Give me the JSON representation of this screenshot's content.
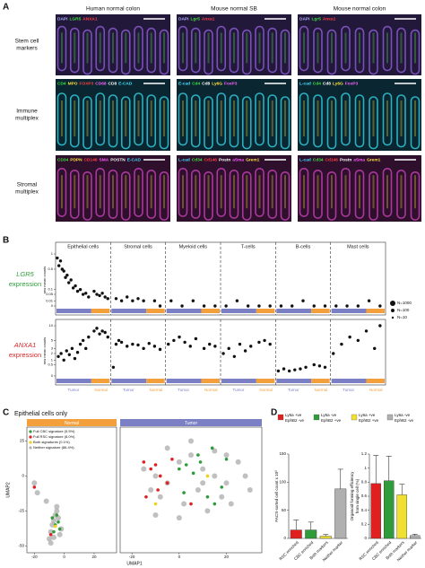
{
  "panel_a": {
    "letter": "A",
    "columns": [
      "Human normal colon",
      "Mouse normal SB",
      "Mouse normal colon"
    ],
    "rows": [
      {
        "label": [
          "Stem cell",
          "markers"
        ],
        "images": [
          {
            "stains": [
              {
                "text": "DAPI",
                "color": "#b0b0ff"
              },
              {
                "text": "LGR5",
                "color": "#40e040"
              },
              {
                "text": "ANXA1",
                "color": "#ff4040"
              }
            ]
          },
          {
            "stains": [
              {
                "text": "DAPI",
                "color": "#b0b0ff"
              },
              {
                "text": "Lgr5",
                "color": "#40e040"
              },
              {
                "text": "Anxa1",
                "color": "#ff4040"
              }
            ]
          },
          {
            "stains": [
              {
                "text": "DAPI",
                "color": "#b0b0ff"
              },
              {
                "text": "Lgr5",
                "color": "#40e040"
              },
              {
                "text": "Anxa1",
                "color": "#ff4040"
              }
            ]
          }
        ]
      },
      {
        "label": [
          "Immune",
          "multiplex"
        ],
        "images": [
          {
            "stains": [
              {
                "text": "CD4",
                "color": "#40e040"
              },
              {
                "text": "MPO",
                "color": "#ffe040"
              },
              {
                "text": "FOXP3",
                "color": "#ff4040"
              },
              {
                "text": "CD68",
                "color": "#ff60ff"
              },
              {
                "text": "CD8",
                "color": "#ffffff"
              },
              {
                "text": "E-CAD",
                "color": "#40e0ff"
              }
            ]
          },
          {
            "stains": [
              {
                "text": "E-cad",
                "color": "#40e0ff"
              },
              {
                "text": "Cd4",
                "color": "#40e040"
              },
              {
                "text": "Cd8",
                "color": "#ffffff"
              },
              {
                "text": "Ly6G",
                "color": "#ffe040"
              },
              {
                "text": "FoxP3",
                "color": "#ff60ff"
              }
            ]
          },
          {
            "stains": [
              {
                "text": "L-cad",
                "color": "#40e0ff"
              },
              {
                "text": "Cd4",
                "color": "#40e040"
              },
              {
                "text": "Cd8",
                "color": "#ffffff"
              },
              {
                "text": "Ly6G",
                "color": "#ffe040"
              },
              {
                "text": "FoxP3",
                "color": "#ff60ff"
              }
            ]
          }
        ]
      },
      {
        "label": [
          "Stromal",
          "multiplex"
        ],
        "images": [
          {
            "stains": [
              {
                "text": "CD34",
                "color": "#40e040"
              },
              {
                "text": "PDPN",
                "color": "#ffe040"
              },
              {
                "text": "CD146",
                "color": "#ff4040"
              },
              {
                "text": "SMA",
                "color": "#ff60ff"
              },
              {
                "text": "POSTN",
                "color": "#ffffff"
              },
              {
                "text": "E-CAD",
                "color": "#40e0ff"
              }
            ]
          },
          {
            "stains": [
              {
                "text": "L-cad",
                "color": "#40e0ff"
              },
              {
                "text": "Cd34",
                "color": "#40e040"
              },
              {
                "text": "Cd146",
                "color": "#ff4040"
              },
              {
                "text": "Postn",
                "color": "#ffffff"
              },
              {
                "text": "aSma",
                "color": "#ff60ff"
              },
              {
                "text": "Grem1",
                "color": "#ffe040"
              }
            ]
          },
          {
            "stains": [
              {
                "text": "L-cad",
                "color": "#40e0ff"
              },
              {
                "text": "Cd34",
                "color": "#40e040"
              },
              {
                "text": "Cd146",
                "color": "#ff4040"
              },
              {
                "text": "Postn",
                "color": "#ffffff"
              },
              {
                "text": "aSma",
                "color": "#ff60ff"
              },
              {
                "text": "Grem1",
                "color": "#ffe040"
              }
            ]
          }
        ]
      }
    ]
  },
  "panel_b": {
    "letter": "B",
    "groups": [
      "Epithelial cells",
      "Stromal cells",
      "Myeloid cells",
      "T-cells",
      "B-cells",
      "Mast cells"
    ],
    "tumor_label": "Tumor",
    "normal_label": "Normal",
    "tumor_color": "#7b7fc4",
    "normal_color": "#f3a03c",
    "y_label": "raw mean counts",
    "size_legend": [
      "N=1000",
      "N=100",
      "N=10"
    ],
    "xlim": [
      0,
      60
    ],
    "charts": [
      {
        "gene": "LGR5",
        "subtitle": "expression",
        "color": "#2e9c3a",
        "scale": "sqrt",
        "ylim": [
          0,
          1
        ],
        "yticks": [
          0,
          0.01,
          0.05,
          0.1,
          0.5,
          1
        ],
        "x": [
          0.3,
          0.6,
          0.9,
          1.2,
          1.5,
          1.8,
          2.1,
          2.4,
          2.8,
          3.2,
          3.6,
          4.0,
          4.5,
          5.0,
          5.5,
          6.0,
          7.0,
          7.5,
          8.0,
          8.5,
          9.0,
          9.5,
          11,
          12,
          13,
          14,
          15,
          16,
          18,
          19,
          21,
          23,
          25,
          27,
          29,
          31,
          33,
          35,
          37,
          39,
          41,
          43,
          45,
          47,
          49,
          51,
          53,
          55,
          57,
          59
        ],
        "values": [
          0.85,
          0.6,
          0.75,
          0.5,
          0.45,
          0.3,
          0.35,
          0.2,
          0.25,
          0.12,
          0.15,
          0.08,
          0.1,
          0.05,
          0.06,
          0.03,
          0.08,
          0.05,
          0.04,
          0.06,
          0.03,
          0.02,
          0.02,
          0.01,
          0.03,
          0.01,
          0.02,
          0.01,
          0.01,
          0,
          0.01,
          0,
          0.01,
          0,
          0,
          0,
          0.01,
          0,
          0,
          0,
          0,
          0,
          0.01,
          0,
          0,
          0,
          0,
          0,
          0.01,
          0
        ]
      },
      {
        "gene": "ANXA1",
        "subtitle": "expression",
        "color": "#d62728",
        "scale": "sqrt",
        "ylim": [
          0,
          10
        ],
        "yticks": [
          0,
          0.5,
          1,
          2,
          3,
          5,
          10
        ],
        "x": [
          0.5,
          1,
          1.5,
          2,
          2.5,
          3,
          3.5,
          4,
          4.5,
          5,
          5.5,
          6,
          7,
          7.5,
          8,
          8.5,
          9,
          9.5,
          10.5,
          11,
          11.5,
          12,
          13,
          14,
          15,
          16,
          17,
          18,
          19,
          20.5,
          21.5,
          22.5,
          23.5,
          24.5,
          25.5,
          27,
          28,
          29,
          30.5,
          31.5,
          32.5,
          33.5,
          34.5,
          35.5,
          37,
          38,
          39,
          40.5,
          41.5,
          42.5,
          43.5,
          44.5,
          45.5,
          47,
          48,
          49,
          50.5,
          52,
          53.5,
          55,
          56.5,
          58,
          59
        ],
        "values": [
          1.5,
          2,
          1,
          2.5,
          1.8,
          3,
          1.2,
          2.2,
          4,
          5,
          3,
          6,
          8,
          9,
          7,
          8,
          7.5,
          6,
          0.3,
          4,
          5,
          4.5,
          3.5,
          4,
          3.8,
          3,
          4.2,
          3.5,
          2.8,
          4,
          5,
          6,
          4.5,
          3.5,
          5.5,
          3,
          4,
          3.5,
          2,
          3,
          1.5,
          4,
          2.5,
          3.5,
          4.5,
          5,
          4,
          0.1,
          0.2,
          0.1,
          0.15,
          0.2,
          0.3,
          0.5,
          0.4,
          0.3,
          2,
          4,
          6,
          5,
          8,
          3,
          10
        ]
      }
    ]
  },
  "panel_c": {
    "letter": "C",
    "title": "Epithelial cells only",
    "x_label": "UMAP1",
    "y_label": "UMAP2",
    "xlim": [
      -25,
      35
    ],
    "xticks": [
      -20,
      0,
      20
    ],
    "ylim": [
      -55,
      35
    ],
    "yticks": [
      -50,
      -25,
      0,
      25
    ],
    "panels": [
      {
        "title": "Normal",
        "color": "#f3a03c",
        "series": [
          {
            "name": "Neither signature (86.4%)",
            "color": "#b0b0b0",
            "x": [
              -10,
              -9,
              -8,
              -7,
              -6,
              -5,
              -4,
              -3,
              -2,
              -9,
              -7,
              -5,
              -20,
              -18,
              -12
            ],
            "y": [
              -45,
              -40,
              -35,
              -32,
              -28,
              -25,
              -30,
              -42,
              -38,
              -48,
              -44,
              -22,
              -5,
              -12,
              -18
            ]
          },
          {
            "name": "Full CBC signature (5.5%)",
            "color": "#2e9c3a",
            "x": [
              -8,
              -6,
              -5,
              -7,
              -4,
              -3
            ],
            "y": [
              -30,
              -35,
              -28,
              -40,
              -33,
              -38
            ]
          },
          {
            "name": "Full RSC signature (8.0%)",
            "color": "#e02020",
            "x": [
              -20,
              -9
            ],
            "y": [
              -8,
              -42
            ]
          },
          {
            "name": "Both signatures (0.1%)",
            "color": "#f0d020",
            "x": [
              -6
            ],
            "y": [
              -36
            ]
          }
        ]
      },
      {
        "title": "Tumor",
        "color": "#7b7fc4",
        "series": [
          {
            "color": "#b0b0b0",
            "x": [
              -15,
              -10,
              -5,
              0,
              5,
              10,
              15,
              20,
              25,
              -12,
              -8,
              2,
              8,
              12,
              18,
              22,
              -5,
              5,
              15,
              0,
              10,
              20,
              -10,
              28,
              30
            ],
            "y": [
              5,
              0,
              -5,
              10,
              15,
              5,
              0,
              -5,
              10,
              -10,
              -15,
              -20,
              -10,
              -25,
              -15,
              -20,
              20,
              25,
              18,
              -30,
              -5,
              15,
              -28,
              0,
              -10
            ]
          },
          {
            "color": "#2e9c3a",
            "x": [
              0,
              3,
              6,
              9,
              12,
              15,
              18,
              2,
              8,
              14,
              20
            ],
            "y": [
              5,
              8,
              2,
              10,
              -15,
              -20,
              -8,
              -12,
              15,
              20,
              12
            ]
          },
          {
            "color": "#e02020",
            "x": [
              -15,
              -12,
              -10,
              -8,
              -5,
              -14,
              -9,
              5,
              -3
            ],
            "y": [
              10,
              5,
              8,
              0,
              -5,
              -15,
              -10,
              -20,
              12
            ]
          },
          {
            "color": "#f0d020",
            "x": [
              -10,
              12
            ],
            "y": [
              -20,
              0
            ]
          }
        ]
      }
    ]
  },
  "panel_d": {
    "letter": "D",
    "legend": [
      {
        "lines": [
          "Ly6a +ve",
          "EphB2 -ve"
        ],
        "color": "#e02020"
      },
      {
        "lines": [
          "Ly6a -ve",
          "EphB2 +ve"
        ],
        "color": "#2e9c3a"
      },
      {
        "lines": [
          "Ly6a +ve",
          "EphB2 +ve"
        ],
        "color": "#f0e030"
      },
      {
        "lines": [
          "Ly6a -ve",
          "EphB2 -ve"
        ],
        "color": "#b0b0b0"
      }
    ],
    "charts": [
      {
        "type": "bar",
        "y_label": [
          "FACS-sorted cell count x 10³"
        ],
        "categories": [
          "RSC enriched",
          "CBC enriched",
          "Both markers",
          "Neither marker"
        ],
        "values": [
          15,
          15,
          4,
          88
        ],
        "errors": [
          18,
          14,
          3,
          35
        ],
        "ylim": [
          0,
          150
        ],
        "yticks": [
          0,
          50,
          100,
          150
        ]
      },
      {
        "type": "bar",
        "y_label": [
          "Organoid forming efficiency",
          "from single cell (%)"
        ],
        "categories": [
          "RSC enriched",
          "CBC enriched",
          "Both markers",
          "Neither marker"
        ],
        "values": [
          0.78,
          0.82,
          0.62,
          0.04
        ],
        "errors": [
          0.4,
          0.35,
          0.15,
          0.02
        ],
        "ylim": [
          0,
          1.2
        ],
        "yticks": [
          0,
          0.2,
          0.4,
          0.6,
          0.8,
          1,
          1.2
        ]
      }
    ]
  }
}
